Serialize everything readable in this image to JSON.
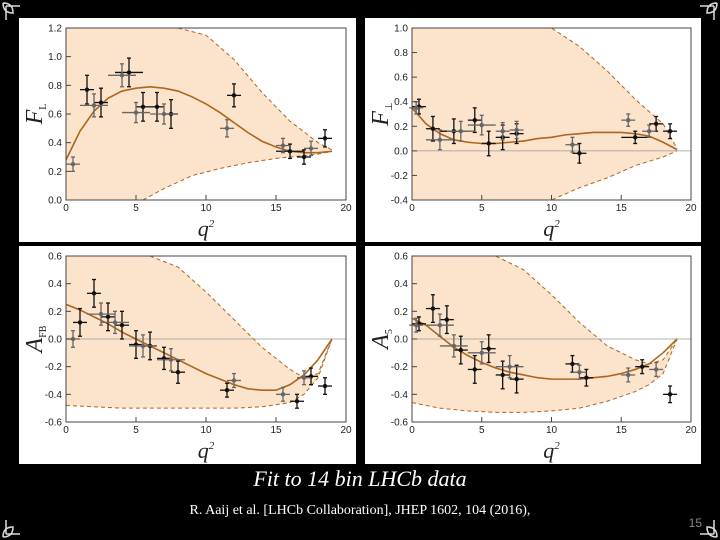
{
  "caption": {
    "title": "Fit to 14 bin LHCb data",
    "reference": "R. Aaij et al. [LHCb Collaboration], JHEP 1602, 104 (2016),",
    "slide_number": "15"
  },
  "colors": {
    "band_fill": "#fbe3cc",
    "fit_line": "#b0651c",
    "band_edge": "#b0651c",
    "points_lhcb": "#111111",
    "points_other": "#666666",
    "background": "#000000"
  },
  "chart_data": [
    {
      "type": "scatter",
      "ylabel": "F",
      "ylabel_sub": "L",
      "xlabel": "q",
      "xlabel_sup": "2",
      "xlim": [
        0,
        20
      ],
      "ylim": [
        0,
        1.2
      ],
      "xticks": [
        0,
        5,
        10,
        15,
        20
      ],
      "yticks": [
        0.0,
        0.2,
        0.4,
        0.6,
        0.8,
        1.0,
        1.2
      ],
      "zero_line": false,
      "fit": {
        "x": [
          0,
          1,
          2,
          3,
          4,
          5,
          6,
          7,
          8,
          9,
          10,
          11,
          12,
          13,
          14,
          15,
          16,
          17,
          18,
          19
        ],
        "y": [
          0.28,
          0.48,
          0.62,
          0.71,
          0.76,
          0.78,
          0.79,
          0.78,
          0.76,
          0.72,
          0.67,
          0.61,
          0.54,
          0.47,
          0.41,
          0.37,
          0.34,
          0.33,
          0.33,
          0.34
        ]
      },
      "band_upper": {
        "x": [
          0,
          2,
          4,
          6,
          8,
          10,
          12,
          14,
          16,
          18,
          19
        ],
        "y": [
          1.2,
          1.2,
          1.2,
          1.2,
          1.2,
          1.15,
          0.98,
          0.75,
          0.55,
          0.4,
          0.35
        ]
      },
      "band_lower": {
        "x": [
          0,
          2,
          4,
          5.5,
          7,
          9,
          11,
          13,
          15,
          17,
          18,
          19
        ],
        "y": [
          0.0,
          0.0,
          0.0,
          0.0,
          0.08,
          0.17,
          0.22,
          0.26,
          0.29,
          0.31,
          0.32,
          0.34
        ]
      },
      "series": [
        {
          "points": [
            [
              1.5,
              0.77
            ],
            [
              2.5,
              0.68
            ],
            [
              4.5,
              0.89
            ],
            [
              5.5,
              0.65
            ],
            [
              6.5,
              0.65
            ],
            [
              7.5,
              0.6
            ],
            [
              12.0,
              0.73
            ],
            [
              16.0,
              0.34
            ],
            [
              17.0,
              0.3
            ],
            [
              18.5,
              0.43
            ]
          ],
          "xerr": [
            0.5,
            0.5,
            1.0,
            0.5,
            0.5,
            0.5,
            0.5,
            1.0,
            0.5,
            0.5
          ],
          "yerr": [
            0.1,
            0.1,
            0.1,
            0.1,
            0.1,
            0.1,
            0.08,
            0.05,
            0.05,
            0.06
          ]
        },
        {
          "points": [
            [
              0.5,
              0.25
            ],
            [
              2.0,
              0.66
            ],
            [
              4.0,
              0.87
            ],
            [
              5.0,
              0.61
            ],
            [
              7.0,
              0.6
            ],
            [
              11.5,
              0.5
            ],
            [
              15.5,
              0.38
            ],
            [
              17.5,
              0.36
            ]
          ],
          "xerr": [
            0.5,
            1.0,
            1.0,
            1.0,
            1.0,
            0.5,
            0.5,
            0.5
          ],
          "yerr": [
            0.05,
            0.08,
            0.08,
            0.07,
            0.07,
            0.06,
            0.05,
            0.05
          ]
        }
      ]
    },
    {
      "type": "scatter",
      "ylabel": "F",
      "ylabel_sub": "⊥",
      "xlabel": "q",
      "xlabel_sup": "2",
      "xlim": [
        0,
        20
      ],
      "ylim": [
        -0.4,
        1.0
      ],
      "xticks": [
        0,
        5,
        10,
        15,
        20
      ],
      "yticks": [
        -0.4,
        -0.2,
        0.0,
        0.2,
        0.4,
        0.6,
        0.8,
        1.0
      ],
      "zero_line": true,
      "fit": {
        "x": [
          0,
          1,
          2,
          3,
          4,
          5,
          6,
          7,
          8,
          9,
          10,
          11,
          12,
          13,
          14,
          15,
          16,
          17,
          18,
          19
        ],
        "y": [
          0.35,
          0.22,
          0.14,
          0.09,
          0.07,
          0.06,
          0.06,
          0.07,
          0.08,
          0.1,
          0.11,
          0.13,
          0.14,
          0.15,
          0.15,
          0.15,
          0.14,
          0.12,
          0.07,
          0.01
        ]
      },
      "band_upper": {
        "x": [
          0,
          2,
          4,
          6,
          8,
          10,
          12,
          14,
          16,
          18,
          19
        ],
        "y": [
          1.0,
          1.0,
          1.0,
          1.0,
          1.0,
          1.0,
          0.85,
          0.65,
          0.42,
          0.22,
          0.02
        ]
      },
      "band_lower": {
        "x": [
          0,
          2,
          4,
          6,
          8,
          10,
          12,
          14,
          16,
          18,
          19
        ],
        "y": [
          -0.4,
          -0.4,
          -0.4,
          -0.4,
          -0.4,
          -0.4,
          -0.3,
          -0.22,
          -0.12,
          -0.05,
          0.0
        ]
      },
      "series": [
        {
          "points": [
            [
              0.5,
              0.36
            ],
            [
              1.5,
              0.18
            ],
            [
              3.0,
              0.16
            ],
            [
              4.5,
              0.25
            ],
            [
              5.5,
              0.06
            ],
            [
              6.5,
              0.11
            ],
            [
              7.5,
              0.14
            ],
            [
              12.0,
              -0.02
            ],
            [
              16.0,
              0.11
            ],
            [
              17.5,
              0.22
            ],
            [
              18.5,
              0.16
            ]
          ],
          "xerr": [
            0.5,
            0.5,
            1.0,
            0.5,
            0.5,
            0.5,
            0.5,
            0.5,
            1.0,
            0.5,
            0.5
          ],
          "yerr": [
            0.06,
            0.1,
            0.1,
            0.1,
            0.1,
            0.1,
            0.08,
            0.08,
            0.05,
            0.06,
            0.06
          ]
        },
        {
          "points": [
            [
              0.3,
              0.35
            ],
            [
              2.0,
              0.09
            ],
            [
              3.5,
              0.16
            ],
            [
              5.0,
              0.21
            ],
            [
              6.5,
              0.16
            ],
            [
              7.5,
              0.17
            ],
            [
              11.5,
              0.05
            ],
            [
              15.5,
              0.25
            ],
            [
              17.0,
              0.16
            ]
          ],
          "xerr": [
            0.5,
            1.0,
            1.0,
            1.0,
            0.5,
            0.5,
            0.5,
            0.5,
            0.5
          ],
          "yerr": [
            0.05,
            0.08,
            0.08,
            0.08,
            0.07,
            0.07,
            0.06,
            0.05,
            0.05
          ]
        }
      ]
    },
    {
      "type": "scatter",
      "ylabel": "A",
      "ylabel_sub": "FB",
      "xlabel": "q",
      "xlabel_sup": "2",
      "xlim": [
        0,
        20
      ],
      "ylim": [
        -0.6,
        0.6
      ],
      "xticks": [
        0,
        5,
        10,
        15,
        20
      ],
      "yticks": [
        -0.6,
        -0.4,
        -0.2,
        0.0,
        0.2,
        0.4,
        0.6
      ],
      "zero_line": true,
      "fit": {
        "x": [
          0,
          1,
          2,
          3,
          4,
          5,
          6,
          7,
          8,
          9,
          10,
          11,
          12,
          13,
          14,
          15,
          16,
          17,
          18,
          19
        ],
        "y": [
          0.25,
          0.21,
          0.16,
          0.11,
          0.05,
          0.0,
          -0.05,
          -0.1,
          -0.15,
          -0.2,
          -0.25,
          -0.29,
          -0.33,
          -0.36,
          -0.37,
          -0.37,
          -0.33,
          -0.26,
          -0.15,
          0.0
        ]
      },
      "band_upper": {
        "x": [
          0,
          2,
          4,
          6,
          8,
          10,
          12,
          14,
          16,
          17,
          18,
          19
        ],
        "y": [
          0.6,
          0.6,
          0.6,
          0.6,
          0.52,
          0.34,
          0.14,
          -0.06,
          -0.22,
          -0.28,
          -0.25,
          0.0
        ]
      },
      "band_lower": {
        "x": [
          0,
          2,
          4,
          6,
          8,
          10,
          12,
          14,
          16,
          17,
          18,
          19
        ],
        "y": [
          -0.48,
          -0.49,
          -0.5,
          -0.5,
          -0.5,
          -0.5,
          -0.5,
          -0.49,
          -0.46,
          -0.4,
          -0.28,
          0.0
        ]
      },
      "series": [
        {
          "points": [
            [
              1.0,
              0.12
            ],
            [
              2.0,
              0.33
            ],
            [
              3.0,
              0.16
            ],
            [
              4.0,
              0.1
            ],
            [
              5.0,
              -0.04
            ],
            [
              6.0,
              -0.05
            ],
            [
              7.0,
              -0.14
            ],
            [
              8.0,
              -0.24
            ],
            [
              11.5,
              -0.37
            ],
            [
              16.5,
              -0.45
            ],
            [
              17.5,
              -0.27
            ],
            [
              18.5,
              -0.34
            ]
          ],
          "xerr": [
            0.5,
            0.5,
            0.5,
            0.5,
            0.5,
            0.5,
            0.5,
            0.5,
            0.5,
            0.5,
            0.5,
            0.5
          ],
          "yerr": [
            0.1,
            0.1,
            0.1,
            0.1,
            0.1,
            0.1,
            0.08,
            0.08,
            0.05,
            0.05,
            0.06,
            0.06
          ]
        },
        {
          "points": [
            [
              0.5,
              0.0
            ],
            [
              2.5,
              0.18
            ],
            [
              3.5,
              0.12
            ],
            [
              5.5,
              -0.05
            ],
            [
              7.5,
              -0.15
            ],
            [
              12.0,
              -0.3
            ],
            [
              15.5,
              -0.4
            ],
            [
              17.0,
              -0.28
            ]
          ],
          "xerr": [
            0.5,
            1.0,
            1.0,
            1.0,
            1.0,
            0.5,
            0.5,
            0.5
          ],
          "yerr": [
            0.06,
            0.08,
            0.08,
            0.08,
            0.08,
            0.05,
            0.05,
            0.05
          ]
        }
      ]
    },
    {
      "type": "scatter",
      "ylabel": "A",
      "ylabel_sub": "5",
      "xlabel": "q",
      "xlabel_sup": "2",
      "xlim": [
        0,
        20
      ],
      "ylim": [
        -0.6,
        0.6
      ],
      "xticks": [
        0,
        5,
        10,
        15,
        20
      ],
      "yticks": [
        -0.6,
        -0.4,
        -0.2,
        0.0,
        0.2,
        0.4,
        0.6
      ],
      "zero_line": true,
      "fit": {
        "x": [
          0,
          1,
          2,
          3,
          4,
          5,
          6,
          7,
          8,
          9,
          10,
          11,
          12,
          13,
          14,
          15,
          16,
          17,
          18,
          19
        ],
        "y": [
          0.15,
          0.1,
          0.02,
          -0.06,
          -0.12,
          -0.17,
          -0.21,
          -0.24,
          -0.26,
          -0.28,
          -0.29,
          -0.29,
          -0.29,
          -0.28,
          -0.27,
          -0.25,
          -0.22,
          -0.18,
          -0.1,
          0.0
        ]
      },
      "band_upper": {
        "x": [
          0,
          2,
          4,
          6,
          8,
          10,
          12,
          14,
          16,
          17,
          18,
          19
        ],
        "y": [
          0.6,
          0.6,
          0.6,
          0.6,
          0.5,
          0.32,
          0.12,
          -0.05,
          -0.15,
          -0.18,
          -0.15,
          0.0
        ]
      },
      "band_lower": {
        "x": [
          0,
          2,
          4,
          6,
          8,
          10,
          12,
          14,
          16,
          17,
          18,
          19
        ],
        "y": [
          -0.46,
          -0.5,
          -0.52,
          -0.53,
          -0.53,
          -0.52,
          -0.5,
          -0.45,
          -0.38,
          -0.33,
          -0.25,
          0.0
        ]
      },
      "series": [
        {
          "points": [
            [
              0.5,
              0.11
            ],
            [
              1.5,
              0.22
            ],
            [
              2.5,
              0.14
            ],
            [
              3.5,
              -0.08
            ],
            [
              4.5,
              -0.22
            ],
            [
              5.5,
              -0.07
            ],
            [
              6.5,
              -0.26
            ],
            [
              7.5,
              -0.29
            ],
            [
              11.5,
              -0.18
            ],
            [
              12.5,
              -0.28
            ],
            [
              16.5,
              -0.2
            ],
            [
              18.5,
              -0.4
            ]
          ],
          "xerr": [
            0.5,
            0.5,
            0.5,
            0.5,
            0.5,
            0.5,
            0.5,
            0.5,
            0.5,
            0.5,
            0.5,
            0.5
          ],
          "yerr": [
            0.05,
            0.1,
            0.1,
            0.1,
            0.1,
            0.1,
            0.1,
            0.1,
            0.06,
            0.06,
            0.05,
            0.06
          ]
        },
        {
          "points": [
            [
              0.3,
              0.1
            ],
            [
              2.0,
              0.1
            ],
            [
              3.0,
              -0.05
            ],
            [
              5.0,
              -0.1
            ],
            [
              7.0,
              -0.2
            ],
            [
              12.0,
              -0.24
            ],
            [
              15.5,
              -0.26
            ],
            [
              17.5,
              -0.22
            ]
          ],
          "xerr": [
            0.5,
            1.0,
            1.0,
            1.0,
            1.0,
            0.5,
            0.5,
            0.5
          ],
          "yerr": [
            0.05,
            0.08,
            0.08,
            0.08,
            0.08,
            0.05,
            0.05,
            0.05
          ]
        }
      ]
    }
  ]
}
